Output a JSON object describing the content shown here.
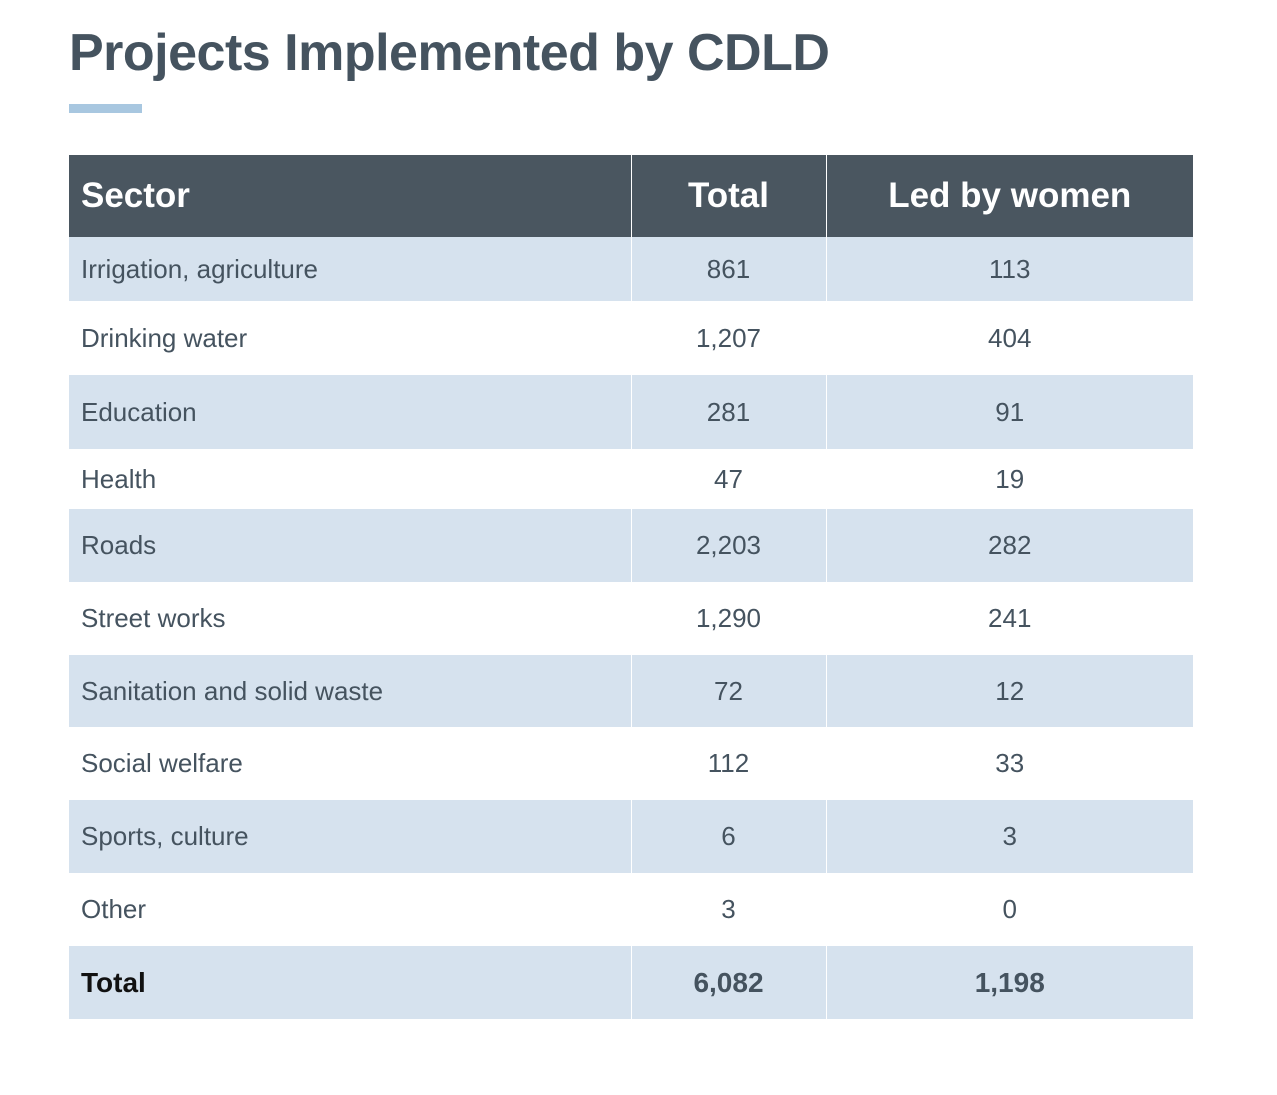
{
  "title": "Projects Implemented by CDLD",
  "colors": {
    "title": "#45535f",
    "accent_bar": "#a8c7e0",
    "header_bg": "#4a5660",
    "stripe_bg": "#d6e2ee"
  },
  "table": {
    "headers": [
      "Sector",
      "Total",
      "Led by women"
    ],
    "rows": [
      {
        "sector": "Irrigation, agriculture",
        "total": "861",
        "women": "113"
      },
      {
        "sector": "Drinking water",
        "total": "1,207",
        "women": "404"
      },
      {
        "sector": "Education",
        "total": "281",
        "women": "91"
      },
      {
        "sector": "Health",
        "total": "47",
        "women": "19"
      },
      {
        "sector": "Roads",
        "total": "2,203",
        "women": "282"
      },
      {
        "sector": "Street works",
        "total": "1,290",
        "women": "241"
      },
      {
        "sector": "Sanitation and solid waste",
        "total": "72",
        "women": "12"
      },
      {
        "sector": "Social welfare",
        "total": "112",
        "women": "33"
      },
      {
        "sector": "Sports, culture",
        "total": "6",
        "women": "3"
      },
      {
        "sector": "Other",
        "total": "3",
        "women": "0"
      }
    ],
    "total_row": {
      "sector": "Total",
      "total": "6,082",
      "women": "1,198"
    }
  }
}
